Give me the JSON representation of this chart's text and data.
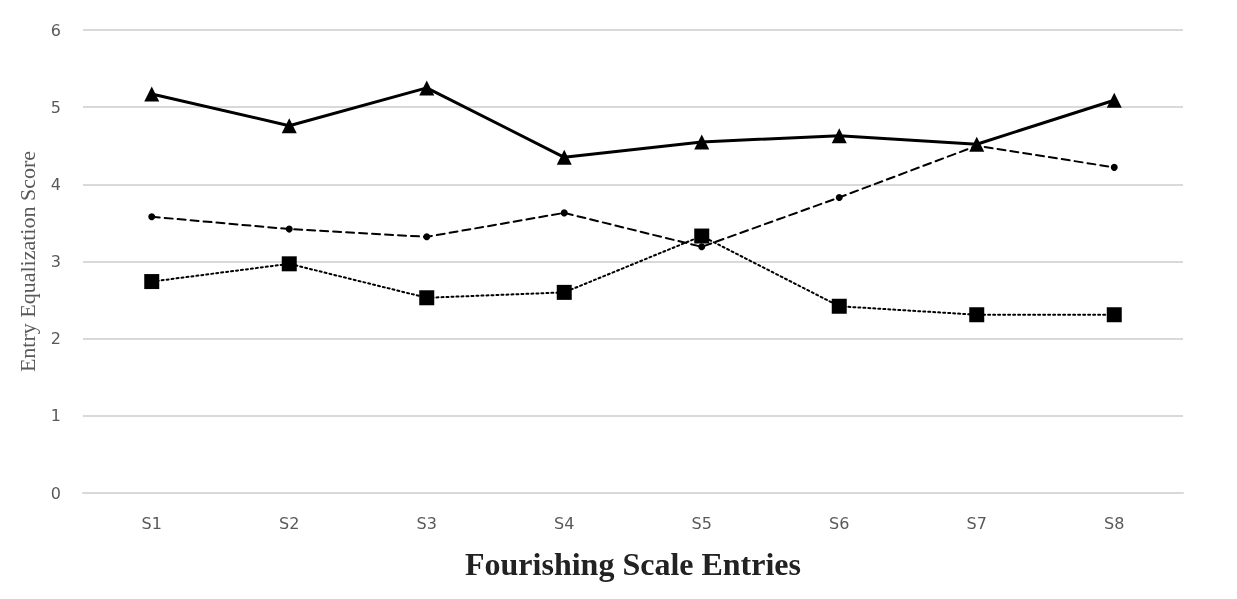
{
  "chart_data": {
    "type": "line",
    "xlabel": "Fourishing Scale Entries",
    "ylabel": "Entry Equalization Score",
    "categories": [
      "S1",
      "S2",
      "S3",
      "S4",
      "S5",
      "S6",
      "S7",
      "S8"
    ],
    "series": [
      {
        "color": "#000000",
        "marker": "triangle",
        "line_style": "solid",
        "values": [
          5.17,
          4.76,
          5.25,
          4.35,
          4.55,
          4.63,
          4.52,
          5.09
        ]
      },
      {
        "color": "#000000",
        "marker": "circle",
        "line_style": "dashed",
        "values": [
          3.58,
          3.42,
          3.32,
          3.63,
          3.19,
          3.83,
          4.5,
          4.22
        ]
      },
      {
        "color": "#000000",
        "marker": "square",
        "line_style": "dotted",
        "values": [
          2.74,
          2.97,
          2.53,
          2.6,
          3.33,
          2.42,
          2.31,
          2.31
        ]
      }
    ],
    "ylim": [
      0,
      6
    ],
    "yticks": [
      0,
      1,
      2,
      3,
      4,
      5,
      6
    ],
    "grid": "y"
  }
}
